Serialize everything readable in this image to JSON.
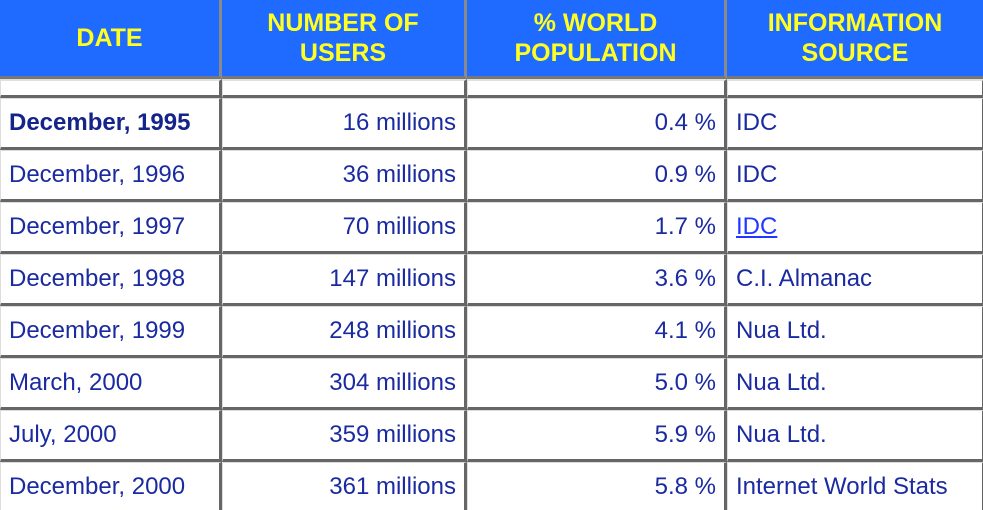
{
  "headers": {
    "date": "DATE",
    "users": "NUMBER OF USERS",
    "percent": "% WORLD POPULATION",
    "source": "INFORMATION SOURCE"
  },
  "rows": [
    {
      "date": "December, 1995",
      "users": "16 millions",
      "percent": "0.4 %",
      "source": "IDC"
    },
    {
      "date": "December, 1996",
      "users": "36 millions",
      "percent": "0.9 %",
      "source": "IDC"
    },
    {
      "date": "December, 1997",
      "users": "70 millions",
      "percent": "1.7 %",
      "source": "IDC"
    },
    {
      "date": "December, 1998",
      "users": "147 millions",
      "percent": "3.6 %",
      "source": "C.I. Almanac"
    },
    {
      "date": "December, 1999",
      "users": "248 millions",
      "percent": "4.1 %",
      "source": "Nua Ltd."
    },
    {
      "date": "March, 2000",
      "users": "304 millions",
      "percent": "5.0 %",
      "source": "Nua Ltd."
    },
    {
      "date": "July, 2000",
      "users": "359 millions",
      "percent": "5.9 %",
      "source": "Nua Ltd."
    },
    {
      "date": "December, 2000",
      "users": "361 millions",
      "percent": "5.8 %",
      "source": "Internet World Stats"
    }
  ],
  "colors": {
    "header_bg": "#1f6bff",
    "header_text": "#ffff22",
    "cell_text": "#1a2aa0",
    "link": "#2038ff"
  }
}
